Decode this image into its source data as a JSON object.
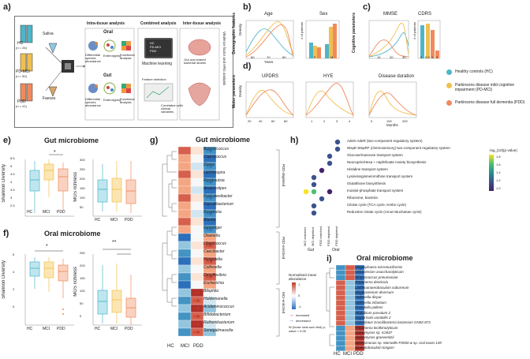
{
  "panels": {
    "a": {
      "letter": "a)",
      "groups": [
        {
          "name": "HC",
          "n": "(n = 26)"
        },
        {
          "name": "PD-MCI",
          "n": "(n = 50)"
        },
        {
          "name": "PDD",
          "n": "(n = 41)"
        }
      ],
      "samples": [
        "Saliva",
        "Faeces"
      ],
      "intra_title": "Intra-tissue analysis",
      "oral_label": "Oral",
      "gut_label": "Gut",
      "intra_items": [
        "Differential species abundance",
        "Enterotyping",
        "Functional analysis"
      ],
      "combined_title": "Combined analysis",
      "combined_items": [
        "HC",
        "PD-MCI",
        "PDD"
      ],
      "ml_label": "Machine learning",
      "feature_sel": "Feature selection",
      "corr_label": "Correlation with clinical variables",
      "inter_title": "Inter-tissue analysis",
      "gut_oral_label": "Gut-oral shared bacterial strains",
      "side_label": "Virulence factor and ARG analysis"
    },
    "b": {
      "letter": "b)",
      "ylabel": "Demographic features",
      "age_title": "Age",
      "age_x": "Years",
      "age_ticks": [
        "60",
        "70",
        "80"
      ],
      "sex_title": "Sex",
      "sex_ylabel": "# of patients",
      "sex_cats": [
        "F",
        "M"
      ],
      "dens_label": "Density"
    },
    "c": {
      "letter": "c)",
      "ylabel": "Cognitive parameters",
      "mmse_title": "MMSE",
      "mmse_ticks": [
        "10",
        "20",
        "30"
      ],
      "cdrs_title": "CDRS",
      "cdrs_ylabel": "# of patients",
      "cdrs_ticks": [
        "0",
        "0.5",
        "1",
        "2"
      ]
    },
    "d": {
      "letter": "d)",
      "ylabel": "Motor parameters",
      "updrs_title": "UPDRS",
      "updrs_ticks": [
        "20",
        "40",
        "60",
        "80"
      ],
      "hye_title": "HYE",
      "hye_ticks": [
        "1",
        "2",
        "3",
        "4"
      ],
      "dur_title": "Disease duration",
      "dur_ticks": [
        "0",
        "100",
        "200"
      ],
      "dur_x": "Months",
      "dens_label": "Density"
    },
    "legend": {
      "items": [
        {
          "label": "Healthy controls (HC)",
          "color": "#4db6c9"
        },
        {
          "label": "Parkinsons disease mild cognitive impairment (PD-MCI)",
          "color": "#f0c04e"
        },
        {
          "label": "Parkinsons disease full dementia (PDD)",
          "color": "#f08a5e"
        }
      ]
    },
    "e": {
      "letter": "e)",
      "title": "Gut microbiome",
      "left_ylabel": "Shannon Diversity",
      "right_ylabel": "MGS richness",
      "xcats": [
        "HC",
        "MCI",
        "PDD"
      ],
      "sig": "*",
      "left_ticks": [
        "5.5",
        "5",
        "4.5",
        "4",
        "3.5",
        "3",
        "2.5"
      ],
      "right_ticks": [
        "300",
        "250",
        "200",
        "150",
        "100",
        "50"
      ]
    },
    "f": {
      "letter": "f)",
      "title": "Oral microbiome",
      "left_ylabel": "Shannon Diversity",
      "right_ylabel": "MGS richness",
      "xcats": [
        "HC",
        "MCI",
        "PDD"
      ],
      "sig": "*",
      "sig2": "**",
      "left_ticks": [
        "6",
        "4",
        "2",
        "0"
      ],
      "right_ticks": [
        "250",
        "200",
        "150",
        "100",
        "50",
        "0"
      ]
    },
    "g": {
      "letter": "g)",
      "title": "Gut microbiome",
      "species": [
        "Butyricicoccus",
        "Coprococcus",
        "Dorea",
        "Lachnospira",
        "Romboutsia",
        "Anaerostipes",
        "Fusicatenibacter",
        "Faecalibacterium",
        "Roseburia",
        "Blautia",
        "Gemmiger",
        "Olsenella",
        "Libanicoccus",
        "Caecibacter",
        "Hungatella",
        "Collinsella",
        "Desulfovibrio",
        "Escherichia",
        "Bilophila",
        "Holdemanella",
        "Acidaminococcus",
        "Bifidobacterium",
        "Ruthenibacterium",
        "Senegalimassilia"
      ],
      "groups": [
        "PDD-depleted",
        "PDD-enriched",
        "MCI-enriched"
      ],
      "xcats": [
        "HC",
        "MCI",
        "PDD"
      ],
      "legend_title": "Normalised mean abundance",
      "legend_ticks": [
        "1",
        "0",
        "-1"
      ],
      "arrow_inc": "increased",
      "arrow_dec": "decreased",
      "test_note": "W (loose rank-sum test) p-value < 0.05"
    },
    "h": {
      "letter": "h)",
      "pathways": [
        "AdeS-AdeR (two-component regulatory system)",
        "WspE-WspRF (chemosensory) two-component regulatory system",
        "Glucose/mannose transport system",
        "Neocuprin/Hexa + naphthoate moiety biosynthesis",
        "Histidine transport system",
        "Lysine/arginine/ornithine transport system",
        "Glutathione biosynthesis",
        "Inositol-phosphate transport system",
        "Ribosome, bacteria",
        "Citrate cycle (TCA cycle, Krebs cycle)",
        "Reductive citrate cycle (Arnon-Buchanan cycle)"
      ],
      "xcats": [
        "MCI enriched",
        "MCI depleted",
        "PDD enriched",
        "PDD depleted",
        "PDD depleted"
      ],
      "tissues": [
        "Gut",
        "Oral"
      ],
      "legend_title": "-log_{10}(p-value)",
      "legend_ticks": [
        "1.8",
        "1.6",
        "1.4",
        "1.2",
        "1.0"
      ]
    },
    "i": {
      "letter": "i)",
      "title": "Oral microbiome",
      "species": [
        "Megasphaera micronuciformis",
        "Oribacterium asaccharolyticum",
        "Streptococcus pneumoniae",
        "Treponema denticola",
        "Lachnoanaerobaculum saburreum",
        "Mogibacterium diversum",
        "Veillonella dispar",
        "Veillonella infantium",
        "Prevotella pallens",
        "Atopobium parvulum 2",
        "Isoptericola variabilis 2",
        "Candidatus Gracilibacteria bacterium GN02-873",
        "Treponema lecithinolyticum",
        "Actinomyces sp. ICM47",
        "Actinomyces graevenitzii",
        "Selenomonas sp. Marseille-P3550 & sp. oral taxon 149",
        "Stomatobaculum longum"
      ],
      "xcats": [
        "HC",
        "MCI",
        "PDD"
      ]
    }
  },
  "colors": {
    "hc": "#4db6c9",
    "mci": "#f0c04e",
    "pdd": "#f08a5e",
    "red": "#c0392b",
    "blue": "#2c6fbb"
  }
}
